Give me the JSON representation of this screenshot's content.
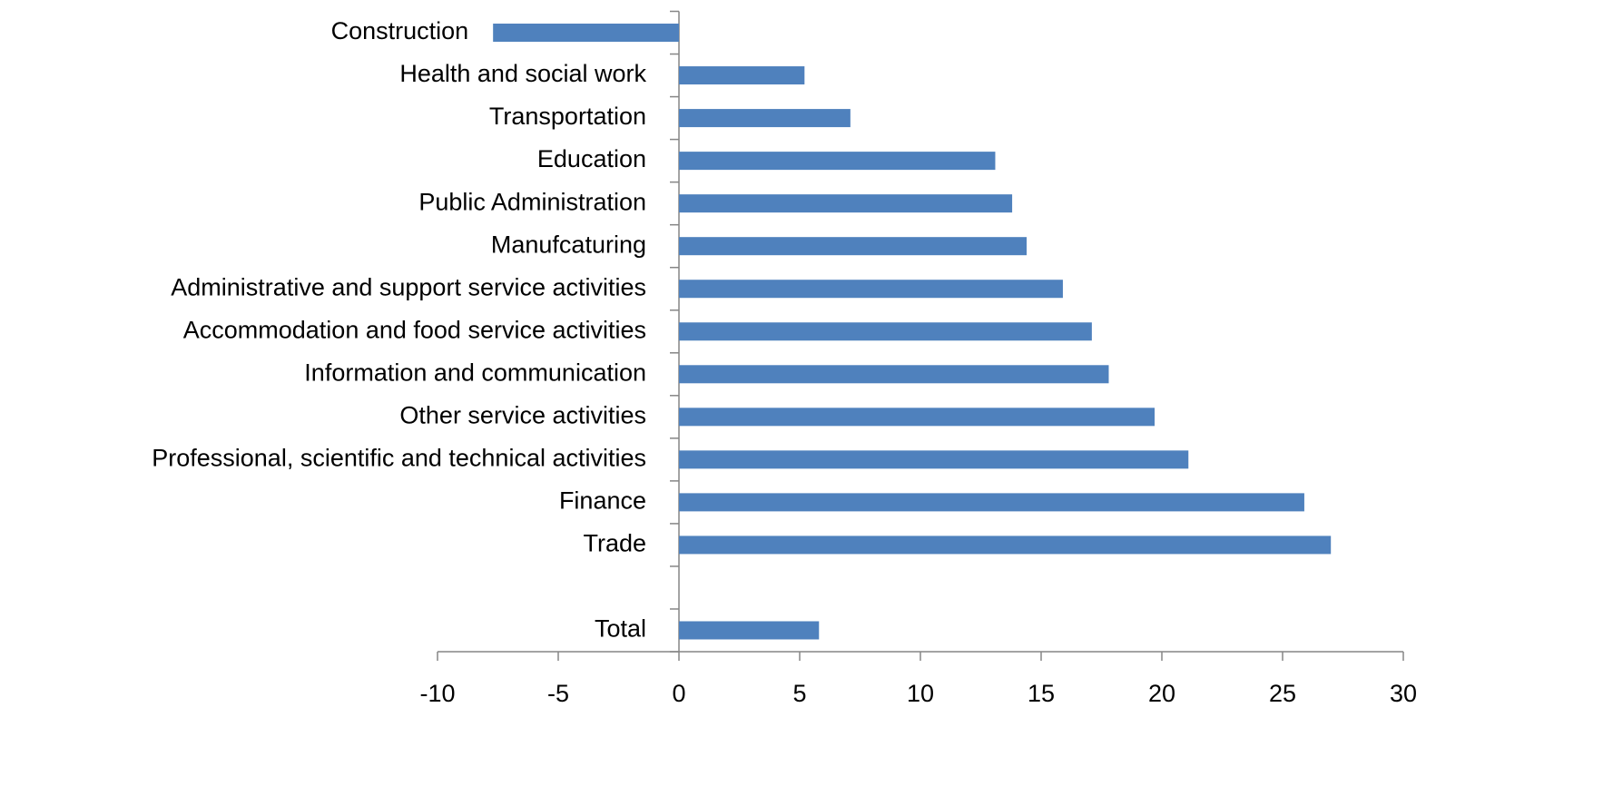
{
  "chart_data": {
    "type": "hbar",
    "categories": [
      "Construction",
      "Health and social work",
      "Transportation",
      "Education",
      "Public Administration",
      "Manufcaturing",
      "Administrative and support service activities",
      "Accommodation and food service activities",
      "Information and communication",
      "Other service activities",
      "Professional, scientific and technical activities",
      "Finance",
      "Trade",
      null,
      "Total"
    ],
    "values": [
      -7.7,
      5.2,
      7.1,
      13.1,
      13.8,
      14.4,
      15.9,
      17.1,
      17.8,
      19.7,
      21.1,
      25.9,
      27.0,
      null,
      5.8
    ],
    "color": "#4f81bd",
    "xlim": [
      -10,
      30
    ],
    "xticks": [
      -10,
      -5,
      0,
      5,
      10,
      15,
      20,
      25,
      30
    ],
    "grid": false
  }
}
